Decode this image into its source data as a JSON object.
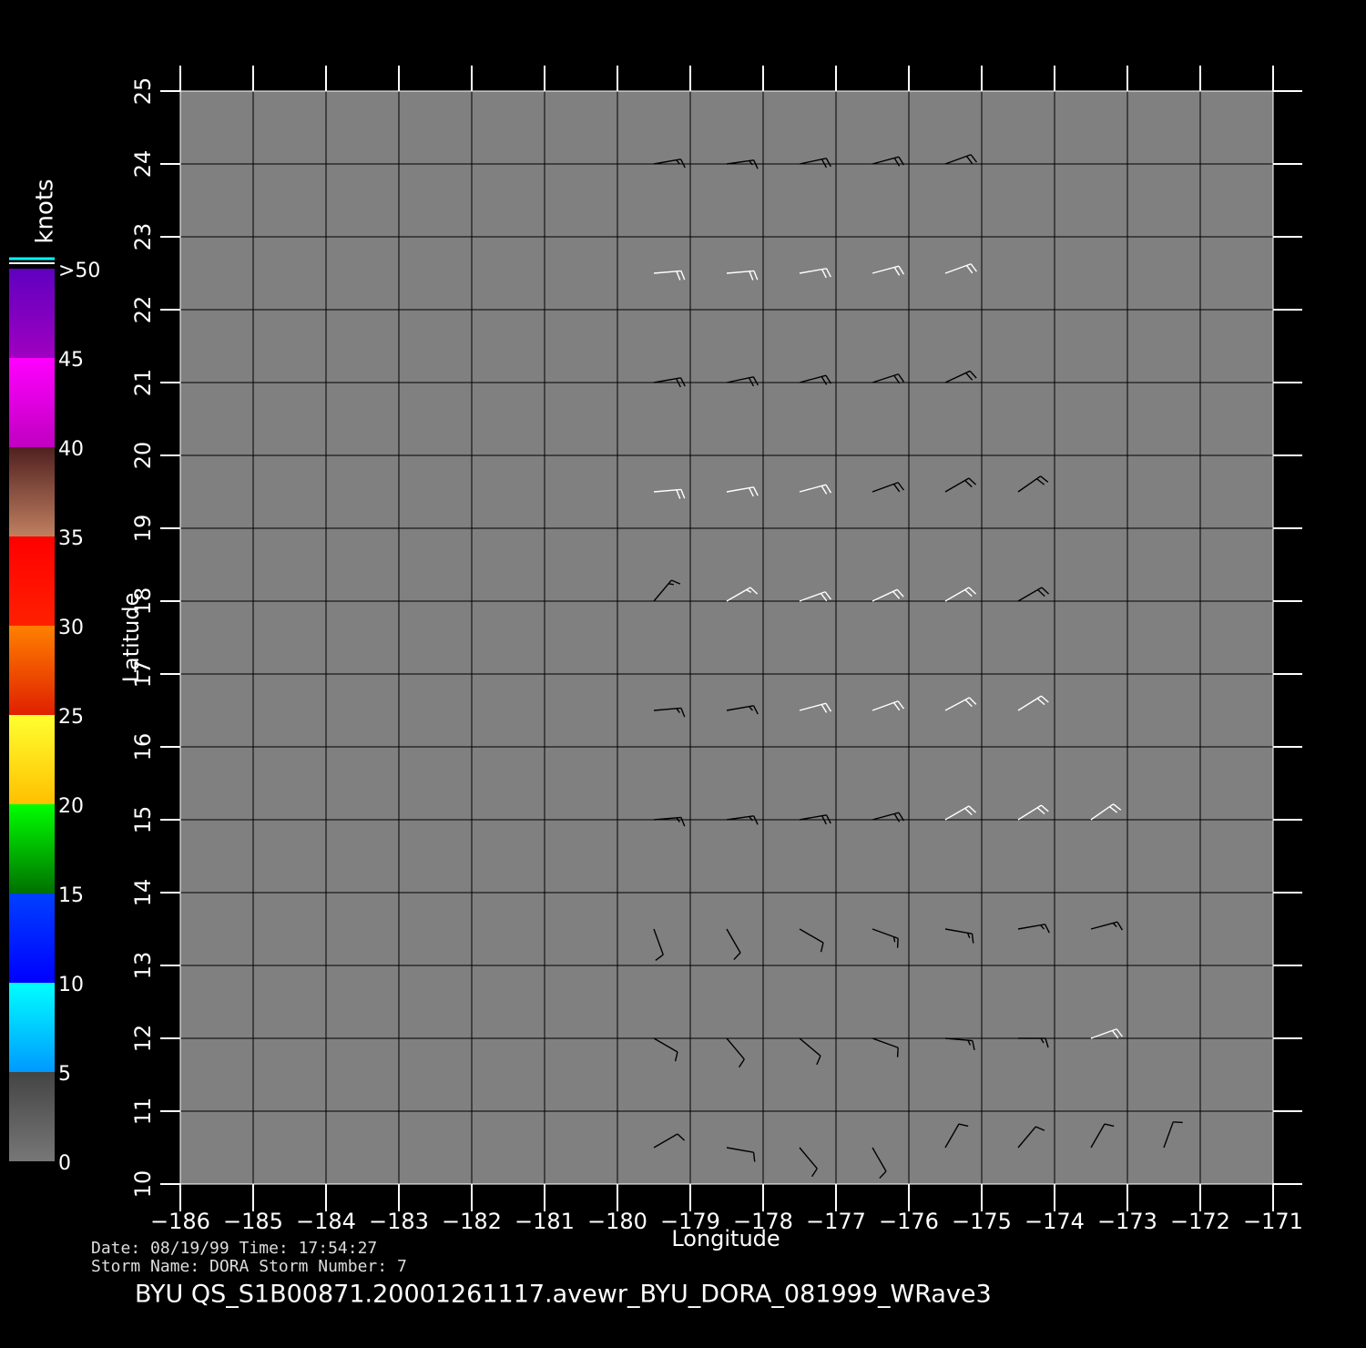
{
  "chart_data": {
    "type": "wind-barb",
    "xlabel": "Longitude",
    "ylabel": "Latitude",
    "xlim": [
      -186,
      -171
    ],
    "ylim": [
      10,
      25
    ],
    "xticks": [
      {
        "value": -186,
        "label": "−186"
      },
      {
        "value": -185,
        "label": "−185"
      },
      {
        "value": -184,
        "label": "−184"
      },
      {
        "value": -183,
        "label": "−183"
      },
      {
        "value": -182,
        "label": "−182"
      },
      {
        "value": -181,
        "label": "−181"
      },
      {
        "value": -180,
        "label": "−180"
      },
      {
        "value": -179,
        "label": "−179"
      },
      {
        "value": -178,
        "label": "−178"
      },
      {
        "value": -177,
        "label": "−177"
      },
      {
        "value": -176,
        "label": "−176"
      },
      {
        "value": -175,
        "label": "−175"
      },
      {
        "value": -174,
        "label": "−174"
      },
      {
        "value": -173,
        "label": "−173"
      },
      {
        "value": -172,
        "label": "−172"
      },
      {
        "value": -171,
        "label": "−171"
      }
    ],
    "yticks": [
      10,
      11,
      12,
      13,
      14,
      15,
      16,
      17,
      18,
      19,
      20,
      21,
      22,
      23,
      24,
      25
    ],
    "grid": true,
    "background": "#808080",
    "colorbar": {
      "label": "knots",
      "range": [
        0,
        50
      ],
      "ticks": [
        0,
        5,
        10,
        15,
        20,
        25,
        30,
        35,
        40,
        45,
        {
          "value": 50,
          "label": ">50"
        }
      ],
      "colors": [
        [
          "#444444",
          "#777777"
        ],
        [
          "#00ffff",
          "#0099ff"
        ],
        [
          "#0040ff",
          "#0000ff"
        ],
        [
          "#00ff00",
          "#007000"
        ],
        [
          "#ffff30",
          "#ffc000"
        ],
        [
          "#ff8000",
          "#e02000"
        ],
        [
          "#ff0000",
          "#ff2000"
        ],
        [
          "#502020",
          "#c08060"
        ],
        [
          "#ff00ff",
          "#c000c0"
        ],
        [
          "#6000c0",
          "#a000c0"
        ]
      ]
    },
    "vector_sets": [
      {
        "color": "#000000",
        "vectors": [
          [
            -179.5,
            24,
            18,
            80
          ],
          [
            -178.5,
            24,
            18,
            82
          ],
          [
            -177.5,
            24,
            20,
            78
          ],
          [
            -176.5,
            24,
            20,
            75
          ],
          [
            -175.5,
            24,
            20,
            70
          ],
          [
            -179.5,
            21,
            20,
            80
          ],
          [
            -178.5,
            21,
            20,
            78
          ],
          [
            -177.5,
            21,
            22,
            75
          ],
          [
            -176.5,
            21,
            22,
            72
          ],
          [
            -175.5,
            21,
            22,
            65
          ],
          [
            -176.5,
            19.5,
            22,
            70
          ],
          [
            -175.5,
            19.5,
            22,
            60
          ],
          [
            -174.5,
            19.5,
            20,
            55
          ],
          [
            -179.5,
            18,
            15,
            40
          ],
          [
            -174.5,
            18,
            20,
            60
          ],
          [
            -179.5,
            16.5,
            18,
            85
          ],
          [
            -178.5,
            16.5,
            18,
            80
          ],
          [
            -179.5,
            15,
            18,
            85
          ],
          [
            -178.5,
            15,
            18,
            82
          ],
          [
            -177.5,
            15,
            20,
            80
          ],
          [
            -176.5,
            15,
            20,
            75
          ],
          [
            -179.5,
            13.5,
            12,
            160
          ],
          [
            -178.5,
            13.5,
            12,
            150
          ],
          [
            -177.5,
            13.5,
            14,
            120
          ],
          [
            -176.5,
            13.5,
            15,
            110
          ],
          [
            -175.5,
            13.5,
            16,
            100
          ],
          [
            -174.5,
            13.5,
            18,
            80
          ],
          [
            -173.5,
            13.5,
            18,
            75
          ],
          [
            -179.5,
            12,
            10,
            120
          ],
          [
            -178.5,
            12,
            10,
            140
          ],
          [
            -177.5,
            12,
            12,
            130
          ],
          [
            -176.5,
            12,
            14,
            110
          ],
          [
            -175.5,
            12,
            15,
            95
          ],
          [
            -174.5,
            12,
            16,
            90
          ],
          [
            -179.5,
            10.5,
            10,
            60
          ],
          [
            -178.5,
            10.5,
            10,
            100
          ],
          [
            -177.5,
            10.5,
            12,
            140
          ],
          [
            -176.5,
            10.5,
            12,
            150
          ],
          [
            -175.5,
            10.5,
            12,
            30
          ],
          [
            -174.5,
            10.5,
            14,
            40
          ],
          [
            -173.5,
            10.5,
            14,
            30
          ],
          [
            -172.5,
            10.5,
            14,
            20
          ]
        ]
      },
      {
        "color": "#ffffff",
        "vectors": [
          [
            -179.5,
            22.5,
            20,
            85
          ],
          [
            -178.5,
            22.5,
            20,
            85
          ],
          [
            -177.5,
            22.5,
            22,
            80
          ],
          [
            -176.5,
            22.5,
            22,
            75
          ],
          [
            -175.5,
            22.5,
            22,
            70
          ],
          [
            -179.5,
            19.5,
            22,
            85
          ],
          [
            -178.5,
            19.5,
            22,
            80
          ],
          [
            -177.5,
            19.5,
            22,
            75
          ],
          [
            -178.5,
            18,
            18,
            60
          ],
          [
            -177.5,
            18,
            22,
            70
          ],
          [
            -176.5,
            18,
            22,
            65
          ],
          [
            -175.5,
            18,
            22,
            60
          ],
          [
            -177.5,
            16.5,
            22,
            75
          ],
          [
            -176.5,
            16.5,
            22,
            70
          ],
          [
            -175.5,
            16.5,
            22,
            62
          ],
          [
            -174.5,
            16.5,
            22,
            58
          ],
          [
            -175.5,
            15,
            22,
            60
          ],
          [
            -174.5,
            15,
            22,
            58
          ],
          [
            -173.5,
            15,
            20,
            55
          ],
          [
            -173.5,
            12,
            20,
            70
          ]
        ]
      }
    ],
    "footer": [
      "Date:  08/19/99   Time:  17:54:27",
      "Storm  Name:  DORA    Storm  Number:  7"
    ],
    "title": "BYU  QS_S1B00871.20001261117.avewr_BYU_DORA_081999_WRave3"
  }
}
